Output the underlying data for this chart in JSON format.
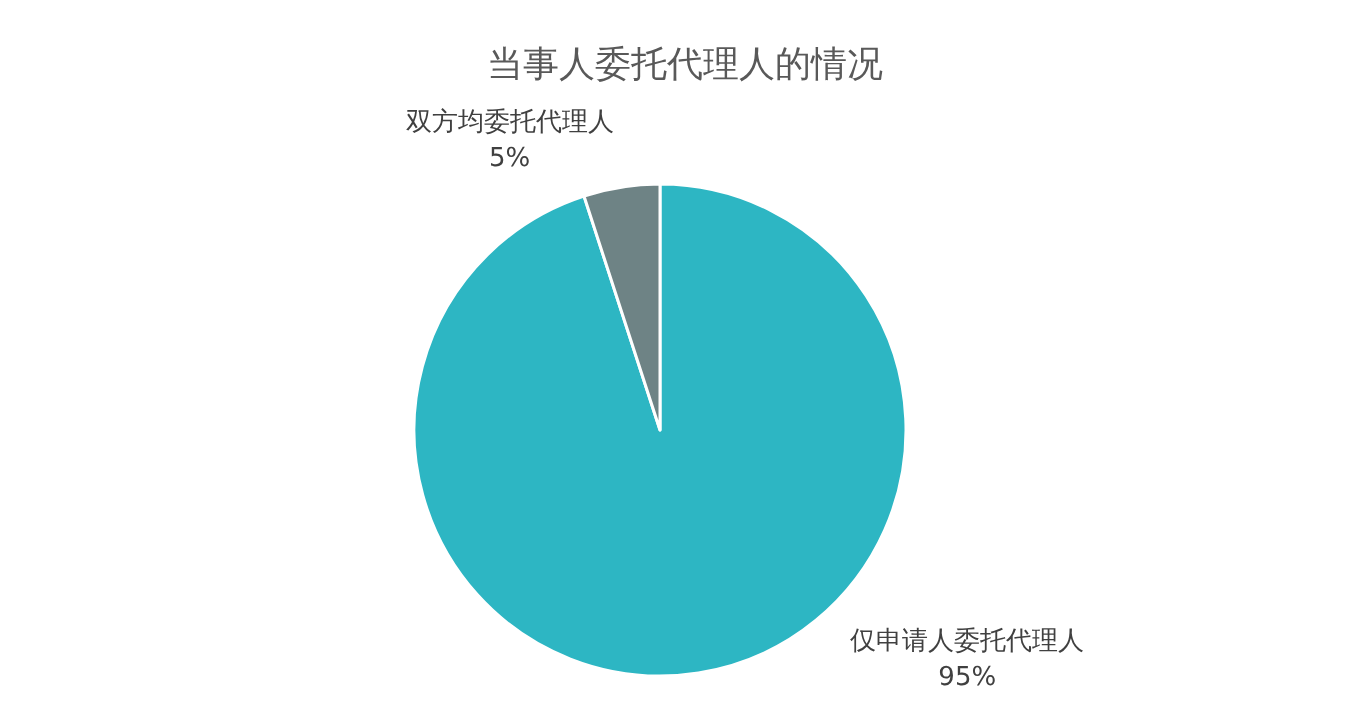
{
  "chart_data": {
    "type": "pie",
    "title": "当事人委托代理人的情况",
    "categories": [
      "仅申请人委托代理人",
      "双方均委托代理人"
    ],
    "values": [
      95,
      5
    ],
    "value_labels": [
      "95%",
      "5%"
    ],
    "colors": [
      "#2db6c3",
      "#6e8385"
    ]
  }
}
